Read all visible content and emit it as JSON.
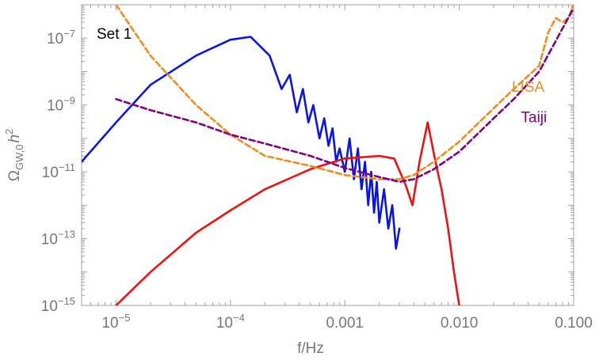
{
  "chart_data": {
    "type": "line",
    "title": "",
    "panel_label": "Set 1",
    "xlabel": "f/Hz",
    "ylabel": "Ω_{GW,0} h^2",
    "ylabel_main": "Ω",
    "ylabel_sub": "GW,0",
    "ylabel_h": "h",
    "ylabel_sup": "2",
    "xscale": "log",
    "yscale": "log",
    "xlim": [
      5e-06,
      0.1
    ],
    "ylim": [
      1e-15,
      1e-06
    ],
    "grid": false,
    "x_ticks": [
      {
        "value": 1e-05,
        "label_base": "10",
        "label_exp": "−5"
      },
      {
        "value": 0.0001,
        "label_base": "10",
        "label_exp": "−4"
      },
      {
        "value": 0.001,
        "label_base": "0.001",
        "label_exp": ""
      },
      {
        "value": 0.01,
        "label_base": "0.010",
        "label_exp": ""
      },
      {
        "value": 0.1,
        "label_base": "0.100",
        "label_exp": ""
      }
    ],
    "y_ticks": [
      {
        "value": 1e-15,
        "label_base": "10",
        "label_exp": "−15"
      },
      {
        "value": 1e-13,
        "label_base": "10",
        "label_exp": "−13"
      },
      {
        "value": 1e-11,
        "label_base": "10",
        "label_exp": "−11"
      },
      {
        "value": 1e-09,
        "label_base": "10",
        "label_exp": "−9"
      },
      {
        "value": 1e-07,
        "label_base": "10",
        "label_exp": "−7"
      }
    ],
    "series": [
      {
        "name": "",
        "color": "#0a14e6",
        "dash": "solid",
        "x": [
          5e-06,
          1e-05,
          2e-05,
          5e-05,
          0.0001,
          0.00015,
          0.00022,
          0.00028,
          0.00033,
          0.00038,
          0.00043,
          0.00048,
          0.00053,
          0.0006,
          0.00066,
          0.00072,
          0.00078,
          0.00084,
          0.0009,
          0.001,
          0.0011,
          0.0012,
          0.0013,
          0.0014,
          0.0015,
          0.0016,
          0.0017,
          0.0018,
          0.0019,
          0.002,
          0.0022,
          0.0024,
          0.0026,
          0.0028,
          0.003
        ],
        "y": [
          2e-11,
          3e-10,
          4e-09,
          3e-08,
          9e-08,
          1.1e-07,
          3e-08,
          3e-09,
          8e-09,
          6e-10,
          3e-09,
          3e-10,
          1e-09,
          1e-10,
          4e-10,
          6e-11,
          2e-10,
          2e-11,
          5e-11,
          1e-11,
          1e-10,
          6e-12,
          5e-11,
          3e-12,
          2e-11,
          1e-12,
          1e-11,
          6e-13,
          5e-12,
          3e-13,
          3e-12,
          2e-13,
          1e-12,
          5e-14,
          2e-13
        ]
      },
      {
        "name": "",
        "color": "#ee1111",
        "dash": "solid",
        "x": [
          1e-05,
          2e-05,
          5e-05,
          0.0001,
          0.0002,
          0.0005,
          0.001,
          0.002,
          0.0027,
          0.0034,
          0.0039,
          0.0045,
          0.0053,
          0.0062,
          0.007,
          0.008,
          0.009,
          0.01
        ],
        "y": [
          1e-15,
          1e-14,
          1.5e-13,
          7e-13,
          3e-12,
          1.2e-11,
          2.5e-11,
          3e-11,
          2.5e-11,
          4e-12,
          1e-12,
          2e-11,
          3e-10,
          2e-11,
          3e-12,
          2e-13,
          1e-14,
          1e-15
        ]
      },
      {
        "name": "LISA",
        "color": "#f08c1e",
        "dash": "dashed",
        "x": [
          1e-05,
          2e-05,
          5e-05,
          0.0001,
          0.0002,
          0.0005,
          0.001,
          0.002,
          0.003,
          0.004,
          0.006,
          0.01,
          0.02,
          0.03,
          0.05,
          0.06,
          0.07,
          0.08,
          0.09,
          0.1
        ],
        "y": [
          1e-06,
          3e-08,
          1e-09,
          1.3e-10,
          3e-11,
          1.5e-11,
          8e-12,
          6e-12,
          6e-12,
          8e-12,
          2e-11,
          8e-11,
          8e-10,
          3e-09,
          1.5e-08,
          1.5e-07,
          4e-07,
          3e-07,
          4e-07,
          1e-06
        ]
      },
      {
        "name": "Taiji",
        "color": "#800080",
        "dash": "dashed",
        "x": [
          1e-05,
          2e-05,
          5e-05,
          0.0001,
          0.0002,
          0.0005,
          0.001,
          0.002,
          0.003,
          0.004,
          0.006,
          0.01,
          0.02,
          0.03,
          0.05,
          0.1
        ],
        "y": [
          1.5e-09,
          7e-10,
          3e-10,
          1.3e-10,
          7e-11,
          3e-11,
          1.3e-11,
          7e-12,
          5e-12,
          6e-12,
          1.2e-11,
          4e-11,
          4e-10,
          1.5e-09,
          1e-08,
          8e-07
        ]
      }
    ],
    "labels": [
      {
        "text": "LISA",
        "color": "#f08c1e",
        "x": 0.04,
        "y": 2.5e-09
      },
      {
        "text": "Taiji",
        "color": "#800080",
        "x": 0.045,
        "y": 3e-10
      }
    ]
  }
}
